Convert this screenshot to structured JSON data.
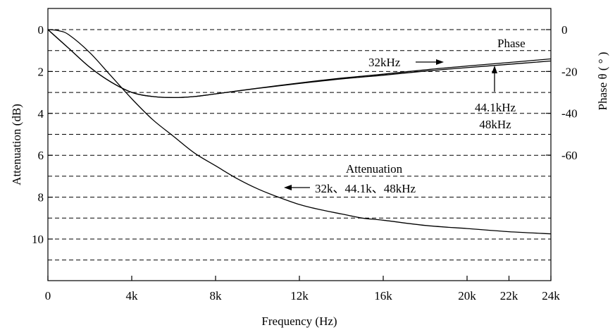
{
  "chart_data": {
    "type": "line",
    "xlabel": "Frequency (Hz)",
    "ylabel": "Attenuation (dB)",
    "y2label": "Phase θ ( ° )",
    "xlim": [
      0,
      24000
    ],
    "ylim": [
      0,
      12
    ],
    "y2lim": [
      0,
      -80
    ],
    "x_ticks": [
      0,
      4000,
      8000,
      12000,
      16000,
      20000,
      22000,
      24000
    ],
    "x_tick_labels": [
      "0",
      "4k",
      "8k",
      "12k",
      "16k",
      "20k",
      "22k",
      "24k"
    ],
    "y_ticks": [
      0,
      2,
      4,
      6,
      8,
      10
    ],
    "y_tick_labels": [
      "0",
      "2",
      "4",
      "6",
      "8",
      "10"
    ],
    "y2_ticks": [
      0,
      -20,
      -40,
      -60
    ],
    "y2_tick_labels": [
      "0",
      "-20",
      "-40",
      "-60"
    ],
    "grid": "horizontal dashed",
    "series": [
      {
        "name": "Attenuation",
        "axis": "left",
        "x": [
          0,
          500,
          1000,
          2000,
          3000,
          4000,
          5000,
          6000,
          7000,
          8000,
          9000,
          10000,
          11000,
          12000,
          13000,
          14000,
          15000,
          16000,
          18000,
          20000,
          22000,
          24000
        ],
        "values": [
          0,
          0.05,
          0.25,
          1.1,
          2.2,
          3.3,
          4.3,
          5.1,
          5.9,
          6.5,
          7.1,
          7.6,
          8.0,
          8.35,
          8.6,
          8.8,
          9.0,
          9.1,
          9.35,
          9.5,
          9.65,
          9.75
        ]
      },
      {
        "name": "Phase",
        "axis": "right",
        "x": [
          0,
          1000,
          2000,
          3000,
          4000,
          5000,
          6000,
          7000,
          8000,
          10000,
          12000,
          14000,
          16000,
          18000,
          20000,
          22000,
          24000
        ],
        "values": [
          0,
          -9,
          -18,
          -25,
          -30,
          -32,
          -32.5,
          -32,
          -30.7,
          -28,
          -25.5,
          -23.2,
          -21.3,
          -19.2,
          -17.4,
          -15.7,
          -14
        ]
      }
    ],
    "annotations": [
      {
        "text": "Phase"
      },
      {
        "text": "32kHz"
      },
      {
        "text": "44.1kHz"
      },
      {
        "text": "48kHz"
      },
      {
        "text": "Attenuation"
      },
      {
        "text": "32k、44.1k、48kHz"
      }
    ]
  }
}
